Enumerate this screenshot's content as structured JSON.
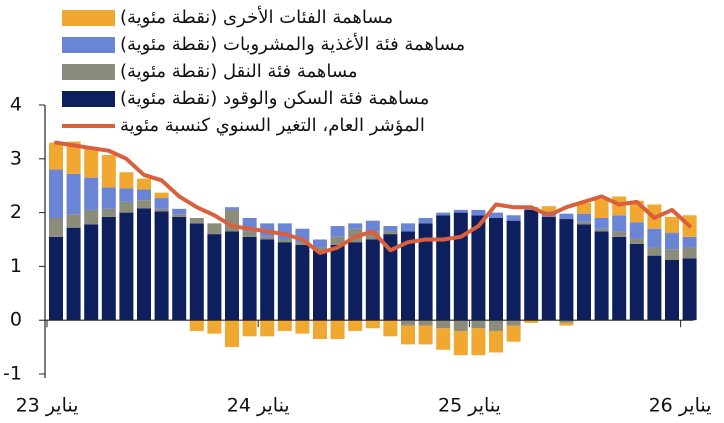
{
  "chart_data": {
    "type": "bar",
    "stacked": true,
    "categories": [
      "يناير 23",
      null,
      null,
      null,
      null,
      null,
      null,
      null,
      null,
      null,
      null,
      null,
      "يناير 24",
      null,
      null,
      null,
      null,
      null,
      null,
      null,
      null,
      null,
      null,
      null,
      "يناير 25",
      null,
      null,
      null,
      null,
      null,
      null,
      null,
      null,
      null,
      null,
      null,
      "يناير 26"
    ],
    "ylim": [
      -1,
      4
    ],
    "yticks": [
      -1,
      0,
      1,
      2,
      3,
      4
    ],
    "series": [
      {
        "name": "مساهمة الفئات الأخرى (نقطة مئوية)",
        "color": "#f0a830",
        "values": [
          0.5,
          0.6,
          0.55,
          0.6,
          0.3,
          0.2,
          0.1,
          0.0,
          -0.2,
          -0.25,
          -0.5,
          -0.3,
          -0.3,
          -0.2,
          -0.25,
          -0.35,
          -0.35,
          -0.2,
          -0.15,
          -0.3,
          -0.35,
          -0.35,
          -0.4,
          -0.45,
          -0.5,
          -0.4,
          -0.3,
          -0.05,
          0.1,
          -0.05,
          0.2,
          0.35,
          0.35,
          0.4,
          0.45,
          0.3,
          0.4
        ]
      },
      {
        "name": "مساهمة فئة الأغذية والمشروبات (نقطة مئوية)",
        "color": "#6a84d6",
        "values": [
          0.9,
          0.75,
          0.6,
          0.4,
          0.25,
          0.2,
          0.2,
          0.1,
          0.0,
          0.0,
          0.05,
          0.25,
          0.25,
          0.3,
          0.25,
          0.15,
          0.2,
          0.1,
          0.2,
          0.1,
          0.15,
          0.1,
          0.05,
          0.05,
          0.1,
          0.1,
          0.1,
          0.05,
          0.1,
          0.1,
          0.15,
          0.2,
          0.3,
          0.3,
          0.35,
          0.3,
          0.2
        ]
      },
      {
        "name": "مساهمة فئة النقل (نقطة مئوية)",
        "color": "#8c8c7c",
        "values": [
          0.35,
          0.25,
          0.27,
          0.15,
          0.2,
          0.15,
          0.05,
          0.05,
          0.1,
          0.2,
          0.4,
          0.1,
          0.05,
          0.05,
          0.05,
          0.05,
          0.15,
          0.25,
          0.15,
          0.05,
          -0.1,
          -0.1,
          -0.15,
          -0.2,
          -0.15,
          -0.2,
          -0.1,
          0.0,
          0.0,
          -0.05,
          0.05,
          0.05,
          0.1,
          0.1,
          0.15,
          0.2,
          0.2
        ]
      },
      {
        "name": "مساهمة فئة السكن والوقود (نقطة مئوية)",
        "color": "#0d1f5c",
        "values": [
          1.55,
          1.72,
          1.78,
          1.92,
          2.0,
          2.08,
          2.02,
          1.92,
          1.8,
          1.6,
          1.65,
          1.55,
          1.5,
          1.45,
          1.4,
          1.3,
          1.4,
          1.45,
          1.5,
          1.6,
          1.65,
          1.8,
          1.95,
          2.0,
          1.95,
          1.9,
          1.85,
          2.05,
          1.92,
          1.88,
          1.78,
          1.65,
          1.55,
          1.42,
          1.2,
          1.12,
          1.15
        ]
      },
      {
        "name": "المؤشر العام، التغير السنوي كنسبة مئوية",
        "color": "#d9603b",
        "type": "line",
        "values": [
          3.3,
          3.25,
          3.2,
          3.15,
          3.0,
          2.7,
          2.6,
          2.3,
          2.1,
          1.95,
          1.75,
          1.7,
          1.65,
          1.6,
          1.5,
          1.25,
          1.35,
          1.55,
          1.65,
          1.3,
          1.45,
          1.5,
          1.5,
          1.55,
          1.75,
          2.15,
          2.1,
          2.1,
          1.95,
          2.1,
          2.2,
          2.3,
          2.15,
          2.2,
          1.9,
          2.05,
          1.75
        ]
      }
    ]
  }
}
